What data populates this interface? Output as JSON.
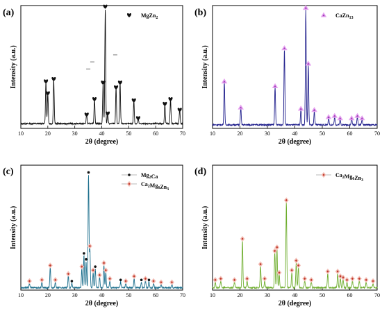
{
  "figure": {
    "panels": [
      "(a)",
      "(b)",
      "(c)",
      "(d)"
    ]
  },
  "chart_data": [
    {
      "panel": "(a)",
      "type": "line",
      "xlabel": "2θ (degree)",
      "ylabel": "Intensity (a.u.)",
      "xlim": [
        10,
        70
      ],
      "ylim": [
        0,
        1
      ],
      "xticks": [
        10,
        20,
        30,
        40,
        50,
        60,
        70
      ],
      "legend": [
        {
          "name": "MgZn",
          "subscript": "2",
          "marker": "heart"
        }
      ],
      "legend_position": "top-right",
      "colors": {
        "line": "#111111",
        "marker": "#111111"
      },
      "peaks": [
        {
          "x": 19.3,
          "y": 0.36
        },
        {
          "x": 20.0,
          "y": 0.26
        },
        {
          "x": 22.2,
          "y": 0.38
        },
        {
          "x": 34.4,
          "y": 0.08
        },
        {
          "x": 37.3,
          "y": 0.21
        },
        {
          "x": 40.5,
          "y": 0.35
        },
        {
          "x": 41.3,
          "y": 0.99
        },
        {
          "x": 42.2,
          "y": 0.09
        },
        {
          "x": 45.3,
          "y": 0.31
        },
        {
          "x": 46.8,
          "y": 0.35
        },
        {
          "x": 51.9,
          "y": 0.2
        },
        {
          "x": 53.5,
          "y": 0.05
        },
        {
          "x": 63.4,
          "y": 0.17
        },
        {
          "x": 65.5,
          "y": 0.21
        },
        {
          "x": 68.9,
          "y": 0.12
        }
      ],
      "baseline": 0.04,
      "stray_marks": [
        {
          "x": 36.5,
          "y": 0.56
        },
        {
          "x": 35.0,
          "y": 0.5
        },
        {
          "x": 45.0,
          "y": 0.62
        }
      ]
    },
    {
      "panel": "(b)",
      "type": "line",
      "xlabel": "2θ (degree)",
      "ylabel": "Intensity (a.u.)",
      "xlim": [
        10,
        70
      ],
      "ylim": [
        0,
        1
      ],
      "xticks": [
        10,
        20,
        30,
        40,
        50,
        60,
        70
      ],
      "legend": [
        {
          "name": "CaZn",
          "subscript": "13",
          "marker": "triangle"
        }
      ],
      "legend_position": "top-right",
      "colors": {
        "line": "#1f1e8c",
        "marker": "#9b3bb5"
      },
      "peaks": [
        {
          "x": 14.3,
          "y": 0.36
        },
        {
          "x": 20.3,
          "y": 0.14
        },
        {
          "x": 32.8,
          "y": 0.32
        },
        {
          "x": 36.2,
          "y": 0.64
        },
        {
          "x": 42.2,
          "y": 0.13
        },
        {
          "x": 44.0,
          "y": 0.98
        },
        {
          "x": 44.9,
          "y": 0.51
        },
        {
          "x": 47.1,
          "y": 0.12
        },
        {
          "x": 52.3,
          "y": 0.06
        },
        {
          "x": 54.5,
          "y": 0.07
        },
        {
          "x": 56.5,
          "y": 0.05
        },
        {
          "x": 60.7,
          "y": 0.05
        },
        {
          "x": 62.8,
          "y": 0.07
        },
        {
          "x": 64.5,
          "y": 0.05
        }
      ],
      "baseline": 0.03
    },
    {
      "panel": "(c)",
      "type": "line",
      "xlabel": "2θ (degree)",
      "ylabel": "Intensity (a.u.)",
      "xlim": [
        10,
        70
      ],
      "ylim": [
        0,
        1
      ],
      "xticks": [
        10,
        20,
        30,
        40,
        50,
        60,
        70
      ],
      "legend": [
        {
          "name": "Mg",
          "subscript": "2",
          "suffix": "Ca",
          "marker": "dot"
        },
        {
          "name": "Ca",
          "subscript": "2",
          "mid": "Mg",
          "subscript2": "6",
          "suffix": "Zn",
          "subscript3": "3",
          "marker": "diamond"
        }
      ],
      "legend_position": "top-right",
      "colors": {
        "line": "#1b6e8c",
        "dot": "#111111",
        "diamond": "#c0392b"
      },
      "peaks": [
        {
          "x": 13.2,
          "y": 0.04
        },
        {
          "x": 17.8,
          "y": 0.05
        },
        {
          "x": 20.9,
          "y": 0.17
        },
        {
          "x": 22.8,
          "y": 0.05
        },
        {
          "x": 27.6,
          "y": 0.1
        },
        {
          "x": 28.9,
          "y": 0.04
        },
        {
          "x": 32.6,
          "y": 0.16
        },
        {
          "x": 33.4,
          "y": 0.27
        },
        {
          "x": 34.2,
          "y": 0.22
        },
        {
          "x": 35.1,
          "y": 0.94
        },
        {
          "x": 35.6,
          "y": 0.33
        },
        {
          "x": 36.8,
          "y": 0.13
        },
        {
          "x": 37.6,
          "y": 0.16
        },
        {
          "x": 39.2,
          "y": 0.09
        },
        {
          "x": 40.8,
          "y": 0.19
        },
        {
          "x": 41.5,
          "y": 0.13
        },
        {
          "x": 43.0,
          "y": 0.06
        },
        {
          "x": 47.0,
          "y": 0.05
        },
        {
          "x": 48.9,
          "y": 0.04
        },
        {
          "x": 52.0,
          "y": 0.08
        },
        {
          "x": 54.7,
          "y": 0.05
        },
        {
          "x": 56.2,
          "y": 0.06
        },
        {
          "x": 57.5,
          "y": 0.05
        },
        {
          "x": 59.2,
          "y": 0.04
        },
        {
          "x": 62.0,
          "y": 0.03
        },
        {
          "x": 66.0,
          "y": 0.03
        }
      ],
      "baseline": 0.02,
      "marker_positions": [
        {
          "x": 13.2,
          "m": "diamond"
        },
        {
          "x": 17.8,
          "m": "diamond"
        },
        {
          "x": 20.9,
          "m": "diamond"
        },
        {
          "x": 22.8,
          "m": "diamond"
        },
        {
          "x": 27.6,
          "m": "diamond"
        },
        {
          "x": 28.9,
          "m": "dot"
        },
        {
          "x": 32.6,
          "m": "diamond"
        },
        {
          "x": 33.4,
          "m": "dot"
        },
        {
          "x": 34.2,
          "m": "dot"
        },
        {
          "x": 35.1,
          "m": "dot"
        },
        {
          "x": 35.6,
          "m": "diamond"
        },
        {
          "x": 36.8,
          "m": "diamond"
        },
        {
          "x": 37.6,
          "m": "dot"
        },
        {
          "x": 39.2,
          "m": "diamond"
        },
        {
          "x": 40.8,
          "m": "diamond"
        },
        {
          "x": 41.5,
          "m": "diamond"
        },
        {
          "x": 43.0,
          "m": "diamond"
        },
        {
          "x": 47.0,
          "m": "dot"
        },
        {
          "x": 48.9,
          "m": "diamond"
        },
        {
          "x": 52.0,
          "m": "diamond"
        },
        {
          "x": 54.7,
          "m": "dot"
        },
        {
          "x": 56.2,
          "m": "diamond"
        },
        {
          "x": 57.5,
          "m": "dot"
        },
        {
          "x": 59.2,
          "m": "diamond"
        },
        {
          "x": 62.0,
          "m": "diamond"
        },
        {
          "x": 66.0,
          "m": "diamond"
        }
      ]
    },
    {
      "panel": "(d)",
      "type": "line",
      "xlabel": "2θ (degree)",
      "ylabel": "Intensity (a.u.)",
      "xlim": [
        10,
        70
      ],
      "ylim": [
        0,
        1
      ],
      "xticks": [
        10,
        20,
        30,
        40,
        50,
        60,
        70
      ],
      "legend": [
        {
          "name": "Ca",
          "subscript": "2",
          "mid": "Mg",
          "subscript2": "6",
          "suffix": "Zn",
          "subscript3": "3",
          "marker": "diamond"
        }
      ],
      "legend_position": "top-right",
      "colors": {
        "line": "#6fae2f",
        "marker": "#c0392b"
      },
      "peaks": [
        {
          "x": 11.0,
          "y": 0.05
        },
        {
          "x": 13.0,
          "y": 0.06
        },
        {
          "x": 18.0,
          "y": 0.05
        },
        {
          "x": 20.9,
          "y": 0.39
        },
        {
          "x": 22.6,
          "y": 0.06
        },
        {
          "x": 27.5,
          "y": 0.18
        },
        {
          "x": 29.0,
          "y": 0.06
        },
        {
          "x": 32.7,
          "y": 0.29
        },
        {
          "x": 33.5,
          "y": 0.32
        },
        {
          "x": 34.3,
          "y": 0.11
        },
        {
          "x": 36.9,
          "y": 0.71
        },
        {
          "x": 38.9,
          "y": 0.13
        },
        {
          "x": 40.5,
          "y": 0.21
        },
        {
          "x": 41.3,
          "y": 0.17
        },
        {
          "x": 43.6,
          "y": 0.06
        },
        {
          "x": 46.0,
          "y": 0.05
        },
        {
          "x": 52.0,
          "y": 0.12
        },
        {
          "x": 55.6,
          "y": 0.12
        },
        {
          "x": 56.6,
          "y": 0.08
        },
        {
          "x": 57.6,
          "y": 0.07
        },
        {
          "x": 59.0,
          "y": 0.05
        },
        {
          "x": 61.0,
          "y": 0.06
        },
        {
          "x": 63.5,
          "y": 0.06
        },
        {
          "x": 66.0,
          "y": 0.05
        },
        {
          "x": 68.5,
          "y": 0.04
        }
      ],
      "baseline": 0.02
    }
  ]
}
